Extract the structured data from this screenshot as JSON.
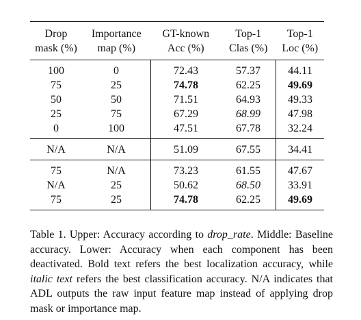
{
  "table": {
    "headers": [
      [
        "Drop",
        "mask (%)"
      ],
      [
        "Importance",
        "map (%)"
      ],
      [
        "GT-known",
        "Acc (%)"
      ],
      [
        "Top-1",
        "Clas (%)"
      ],
      [
        "Top-1",
        "Loc (%)"
      ]
    ],
    "groups": [
      [
        [
          "100",
          "0",
          "72.43",
          "57.37",
          "44.11"
        ],
        [
          "75",
          "25",
          "74.78",
          "62.25",
          "49.69"
        ],
        [
          "50",
          "50",
          "71.51",
          "64.93",
          "49.33"
        ],
        [
          "25",
          "75",
          "67.29",
          "68.99",
          "47.98"
        ],
        [
          "0",
          "100",
          "47.51",
          "67.78",
          "32.24"
        ]
      ],
      [
        [
          "N/A",
          "N/A",
          "51.09",
          "67.55",
          "34.41"
        ]
      ],
      [
        [
          "75",
          "N/A",
          "73.23",
          "61.55",
          "47.67"
        ],
        [
          "N/A",
          "25",
          "50.62",
          "68.50",
          "33.91"
        ],
        [
          "75",
          "25",
          "74.78",
          "62.25",
          "49.69"
        ]
      ]
    ],
    "styles": [
      [
        [
          "",
          "",
          "",
          "",
          ""
        ],
        [
          "",
          "",
          "bold",
          "",
          "bold"
        ],
        [
          "",
          "",
          "",
          "",
          ""
        ],
        [
          "",
          "",
          "",
          "italic",
          ""
        ],
        [
          "",
          "",
          "",
          "",
          ""
        ]
      ],
      [
        [
          "",
          "",
          "",
          "",
          ""
        ]
      ],
      [
        [
          "",
          "",
          "",
          "",
          ""
        ],
        [
          "",
          "",
          "",
          "italic",
          ""
        ],
        [
          "",
          "",
          "bold",
          "",
          "bold"
        ]
      ]
    ]
  },
  "caption": {
    "lead": "Table 1. Upper: Accuracy according to ",
    "lead_italic": "drop_rate",
    "middle": ". Middle: Baseline accuracy. Lower: Accuracy when each component has been deactivated. Bold text refers the best localization accuracy, while ",
    "middle_italic": "italic text",
    "tail": " refers the best classification accuracy. N/A indicates that ADL outputs the raw input feature map instead of applying drop mask or importance map."
  }
}
